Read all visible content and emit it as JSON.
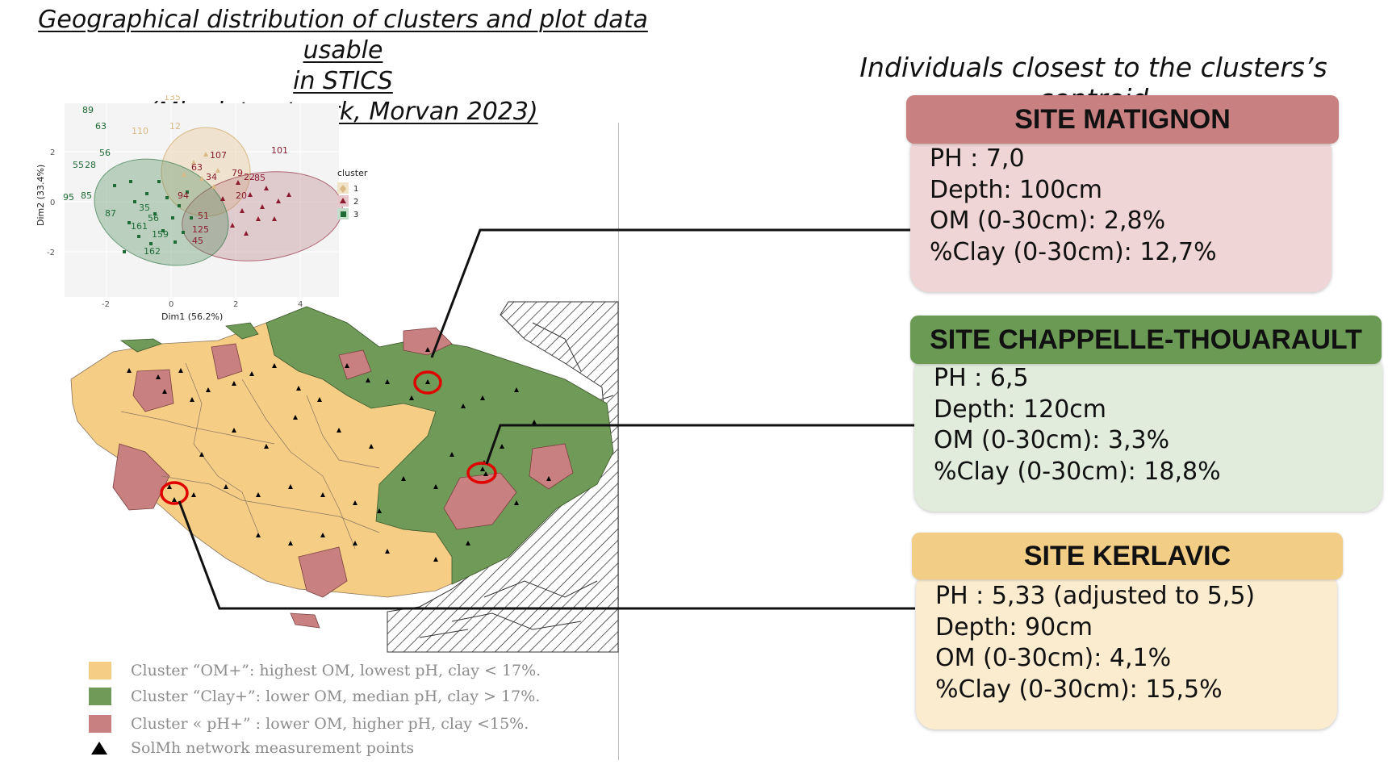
{
  "title": {
    "line1": "Geographical distribution of clusters and plot data usable",
    "line2": "in STICS ",
    "line3": "(Mh plot network, Morvan 2023) "
  },
  "right_heading": "Individuals closest to the clusters’s centroid",
  "sites": [
    {
      "name": "SITE MATIGNON",
      "head_color": "#c98080",
      "body_color": "#efd5d5",
      "lines": [
        "PH : 7,0",
        "Depth: 100cm",
        "OM (0-30cm): 2,8%",
        "%Clay (0-30cm): 12,7%"
      ]
    },
    {
      "name": "SITE CHAPPELLE-THOUARAULT",
      "head_color": "#6b9a55",
      "body_color": "#e2ecdc",
      "lines": [
        "PH : 6,5",
        "Depth: 120cm",
        "OM (0-30cm): 3,3%",
        "%Clay (0-30cm): 18,8%"
      ]
    },
    {
      "name": "SITE KERLAVIC",
      "head_color": "#f2cd85",
      "body_color": "#fbeccf",
      "lines": [
        "PH : 5,33 (adjusted to 5,5)",
        "Depth: 90cm",
        "OM (0-30cm): 4,1%",
        "%Clay (0-30cm): 15,5%"
      ]
    }
  ],
  "legend": [
    {
      "label": "Cluster “OM+”: highest OM, lowest pH, clay < 17%.",
      "color": "#f5cd85"
    },
    {
      "label": "Cluster “Clay+”: lower OM, median pH, clay > 17%.",
      "color": "#6f9a57"
    },
    {
      "label": "Cluster « pH+” : lower OM, higher pH, clay <15%.",
      "color": "#c98080"
    },
    {
      "label": "SolMh network measurement points",
      "symbol": "triangle"
    }
  ],
  "pca_plot": {
    "xlabel": "Dim1 (56.2%)",
    "ylabel": "Dim2 (33.4%)",
    "x_ticks": [
      "-2",
      "0",
      "2",
      "4"
    ],
    "y_ticks": [
      "2",
      "0",
      "-2"
    ],
    "legend_title": "cluster",
    "legend_items": [
      "1",
      "2",
      "3"
    ],
    "cluster_colors": {
      "1": "#e8cfa2",
      "2": "#8b1a2e",
      "3": "#1e6b35"
    },
    "labels_green": [
      "89",
      "63",
      "56",
      "55",
      "28",
      "95",
      "87",
      "35",
      "161",
      "56",
      "159",
      "162",
      "85"
    ],
    "labels_red": [
      "107",
      "101",
      "63",
      "34",
      "79",
      "22",
      "85",
      "20",
      "51",
      "125",
      "45",
      "94"
    ],
    "labels_beige": [
      "110",
      "12",
      "135"
    ]
  },
  "colors": {
    "om_plus": "#f5cd85",
    "clay_plus": "#6f9a57",
    "ph_plus": "#c98080",
    "circle": "#e00000"
  }
}
